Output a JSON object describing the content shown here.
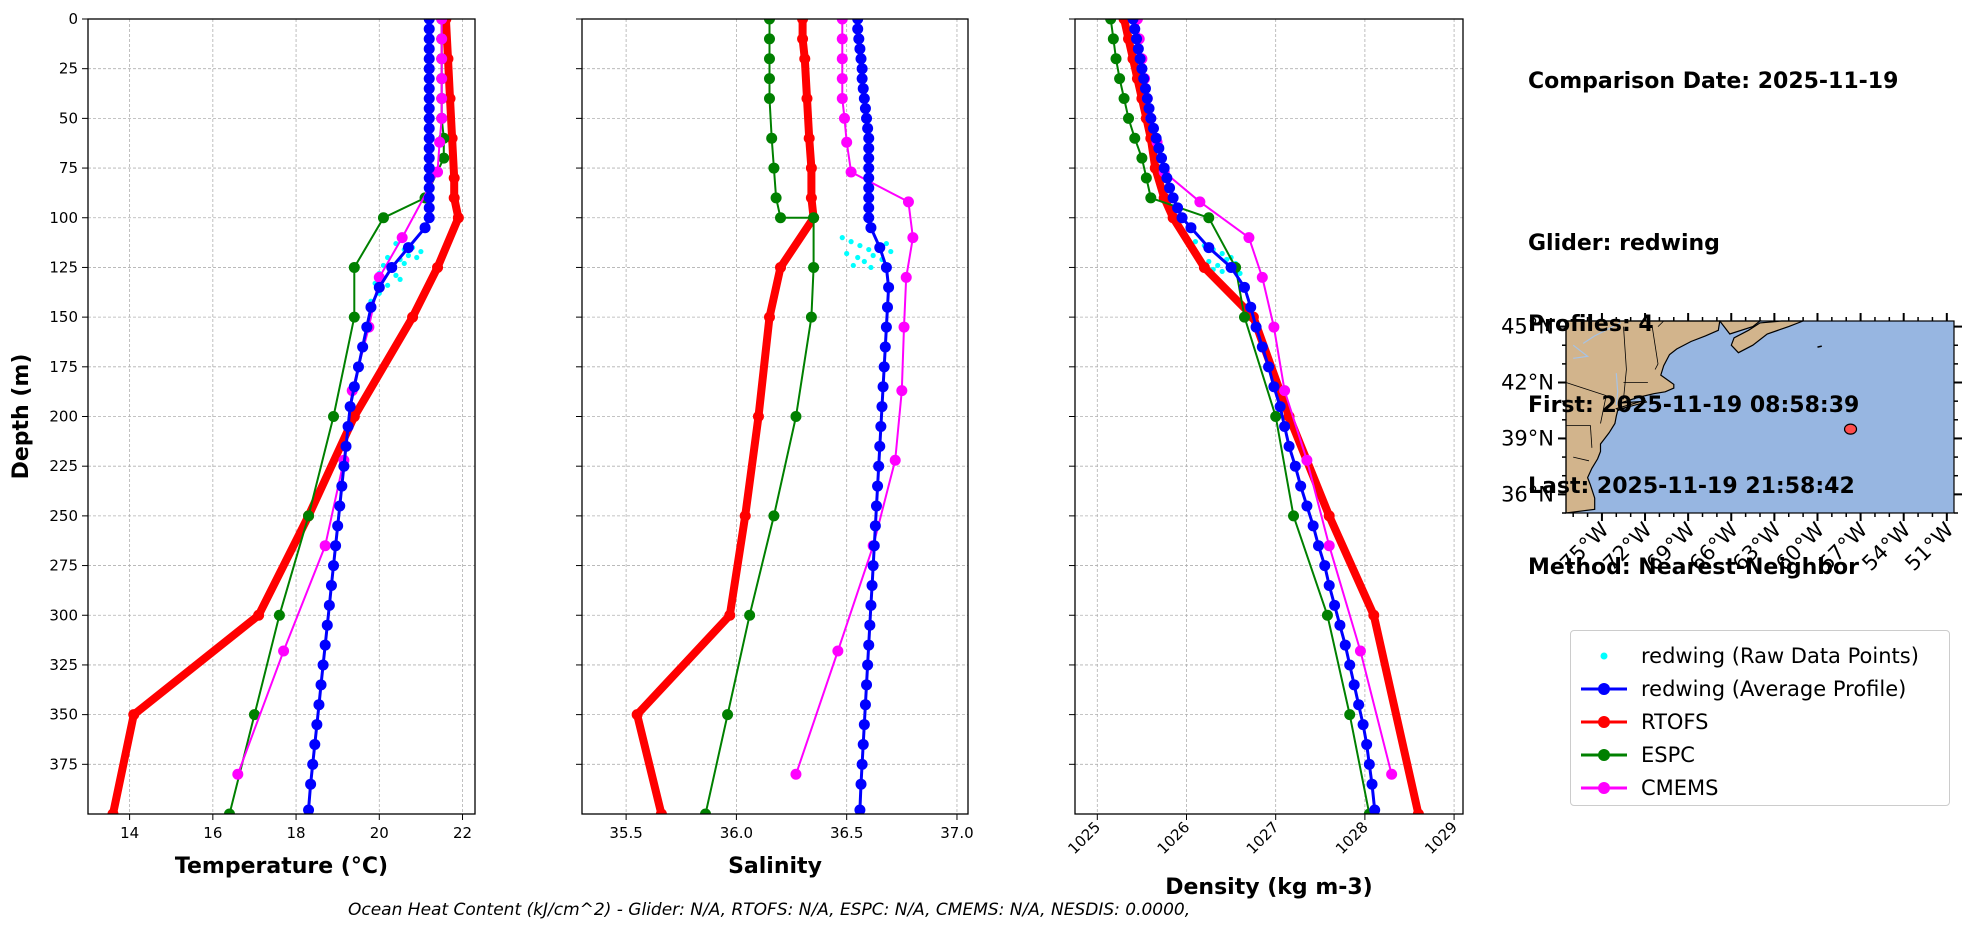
{
  "info": {
    "lines": [
      "Comparison Date: 2025-11-19",
      "",
      "Glider: redwing",
      "Profiles: 4",
      "First: 2025-11-19 08:58:39",
      "Last: 2025-11-19 21:58:42",
      "Method: Nearest-Neighbor"
    ]
  },
  "footer": {
    "text": "Ocean Heat Content (kJ/cm^2) - Glider: N/A,  RTOFS: N/A,  ESPC: N/A,  CMEMS: N/A,  NESDIS: 0.0000,"
  },
  "legend": {
    "items": [
      {
        "label": "redwing (Raw Data Points)",
        "color": "#00ffff",
        "style": "dot"
      },
      {
        "label": "redwing (Average Profile)",
        "color": "#0000ff",
        "style": "line-marker"
      },
      {
        "label": "RTOFS",
        "color": "#ff0000",
        "style": "line-marker"
      },
      {
        "label": "ESPC",
        "color": "#008000",
        "style": "line-marker"
      },
      {
        "label": "CMEMS",
        "color": "#ff00ff",
        "style": "line-marker"
      }
    ]
  },
  "map": {
    "lat_ticks": [
      "45°N",
      "42°N",
      "39°N",
      "36°N"
    ],
    "lon_ticks": [
      "75°W",
      "72°W",
      "69°W",
      "66°W",
      "63°W",
      "60°W",
      "57°W",
      "54°W",
      "51°W"
    ],
    "lat_values": [
      45,
      42,
      39,
      36
    ],
    "lon_values": [
      -75,
      -72,
      -69,
      -66,
      -63,
      -60,
      -57,
      -54,
      -51
    ],
    "extent": {
      "lon_min": -77.5,
      "lon_max": -50.5,
      "lat_min": 35,
      "lat_max": 45.3
    },
    "glider_position": {
      "lon": -57.7,
      "lat": 39.5
    },
    "ocean_color": "#97b6e1",
    "land_color": "#d2b48c"
  },
  "chart_data": [
    {
      "type": "line",
      "xlabel": "Temperature (°C)",
      "ylabel": "Depth (m)",
      "xlim": [
        13,
        22.3
      ],
      "ylim": [
        400,
        0
      ],
      "xticks": [
        14,
        16,
        18,
        20,
        22
      ],
      "yticks": [
        0,
        25,
        50,
        75,
        100,
        125,
        150,
        175,
        200,
        225,
        250,
        275,
        300,
        325,
        350,
        375
      ],
      "grid": true,
      "series": [
        {
          "name": "redwing (Raw Data Points)",
          "color": "#00ffff",
          "style": "dot",
          "x": [
            20.4,
            20.6,
            20.8,
            21.0,
            20.2,
            20.5,
            20.7,
            20.9,
            20.1,
            20.3,
            20.6,
            20.0,
            20.4,
            19.9,
            20.2,
            20.5,
            20.0,
            19.8
          ],
          "y": [
            113,
            116,
            115,
            117,
            120,
            121,
            119,
            120,
            124,
            125,
            123,
            128,
            129,
            133,
            134,
            131,
            138,
            142
          ]
        },
        {
          "name": "redwing (Average Profile)",
          "color": "#0000ff",
          "style": "line-marker",
          "width": 3,
          "x": [
            21.2,
            21.2,
            21.2,
            21.2,
            21.2,
            21.2,
            21.2,
            21.2,
            21.2,
            21.2,
            21.2,
            21.2,
            21.2,
            21.2,
            21.2,
            21.2,
            21.2,
            21.2,
            21.2,
            21.2,
            21.2,
            21.1,
            20.7,
            20.3,
            20.0,
            19.8,
            19.7,
            19.6,
            19.5,
            19.4,
            19.3,
            19.25,
            19.2,
            19.15,
            19.1,
            19.05,
            19.0,
            18.95,
            18.9,
            18.85,
            18.8,
            18.75,
            18.7,
            18.65,
            18.6,
            18.55,
            18.5,
            18.45,
            18.4,
            18.35,
            18.3
          ],
          "y": [
            0,
            5,
            10,
            15,
            20,
            25,
            30,
            35,
            40,
            45,
            50,
            55,
            60,
            65,
            70,
            75,
            80,
            85,
            90,
            95,
            100,
            105,
            115,
            125,
            135,
            145,
            155,
            165,
            175,
            185,
            195,
            205,
            215,
            225,
            235,
            245,
            255,
            265,
            275,
            285,
            295,
            305,
            315,
            325,
            335,
            345,
            355,
            365,
            375,
            385,
            398
          ]
        },
        {
          "name": "RTOFS",
          "color": "#ff0000",
          "style": "line-marker",
          "width": 8,
          "x": [
            21.6,
            21.65,
            21.7,
            21.75,
            21.8,
            21.8,
            21.9,
            21.4,
            20.8,
            19.4,
            18.3,
            17.1,
            14.1,
            13.6
          ],
          "y": [
            0,
            20,
            40,
            60,
            80,
            90,
            100,
            125,
            150,
            200,
            250,
            300,
            350,
            400
          ]
        },
        {
          "name": "ESPC",
          "color": "#008000",
          "style": "line-marker",
          "width": 2,
          "x": [
            21.5,
            21.5,
            21.5,
            21.5,
            21.5,
            21.5,
            21.55,
            21.55,
            21.1,
            20.1,
            19.4,
            19.4,
            18.9,
            18.3,
            17.6,
            17.0,
            16.4
          ],
          "y": [
            0,
            10,
            20,
            30,
            40,
            50,
            60,
            70,
            90,
            100,
            125,
            150,
            200,
            250,
            300,
            350,
            400
          ]
        },
        {
          "name": "CMEMS",
          "color": "#ff00ff",
          "style": "line-marker",
          "width": 2,
          "x": [
            21.5,
            21.5,
            21.5,
            21.5,
            21.5,
            21.5,
            21.45,
            21.4,
            20.55,
            20.0,
            19.75,
            19.35,
            19.15,
            18.7,
            17.7,
            16.6
          ],
          "y": [
            0,
            10,
            20,
            30,
            40,
            50,
            62,
            77,
            110,
            130,
            155,
            187,
            222,
            265,
            318,
            380
          ]
        }
      ]
    },
    {
      "type": "line",
      "xlabel": "Salinity",
      "ylabel": "",
      "xlim": [
        35.3,
        37.05
      ],
      "ylim": [
        400,
        0
      ],
      "xticks": [
        35.5,
        36.0,
        36.5,
        37.0
      ],
      "xticklabels": [
        "35.5",
        "36.0",
        "36.5",
        "37.0"
      ],
      "grid": true,
      "series": [
        {
          "name": "redwing (Raw Data Points)",
          "color": "#00ffff",
          "style": "dot",
          "x": [
            36.48,
            36.52,
            36.56,
            36.6,
            36.64,
            36.68,
            36.5,
            36.55,
            36.62,
            36.7,
            36.58,
            36.66,
            36.53,
            36.61
          ],
          "y": [
            110,
            112,
            114,
            116,
            115,
            113,
            118,
            120,
            119,
            117,
            122,
            121,
            124,
            125
          ]
        },
        {
          "name": "redwing (Average Profile)",
          "color": "#0000ff",
          "style": "line-marker",
          "width": 3,
          "x": [
            36.55,
            36.55,
            36.555,
            36.56,
            36.565,
            36.57,
            36.57,
            36.575,
            36.58,
            36.585,
            36.59,
            36.595,
            36.6,
            36.6,
            36.6,
            36.6,
            36.6,
            36.6,
            36.6,
            36.6,
            36.6,
            36.61,
            36.65,
            36.68,
            36.69,
            36.685,
            36.68,
            36.675,
            36.67,
            36.665,
            36.66,
            36.655,
            36.65,
            36.645,
            36.64,
            36.635,
            36.63,
            36.625,
            36.62,
            36.615,
            36.61,
            36.605,
            36.6,
            36.595,
            36.59,
            36.585,
            36.58,
            36.575,
            36.57,
            36.565,
            36.56
          ],
          "y": [
            0,
            5,
            10,
            15,
            20,
            25,
            30,
            35,
            40,
            45,
            50,
            55,
            60,
            65,
            70,
            75,
            80,
            85,
            90,
            95,
            100,
            105,
            115,
            125,
            135,
            145,
            155,
            165,
            175,
            185,
            195,
            205,
            215,
            225,
            235,
            245,
            255,
            265,
            275,
            285,
            295,
            305,
            315,
            325,
            335,
            345,
            355,
            365,
            375,
            385,
            398
          ]
        },
        {
          "name": "RTOFS",
          "color": "#ff0000",
          "style": "line-marker",
          "width": 8,
          "x": [
            36.3,
            36.3,
            36.31,
            36.32,
            36.33,
            36.34,
            36.34,
            36.35,
            36.2,
            36.15,
            36.1,
            36.04,
            35.97,
            35.55,
            35.66
          ],
          "y": [
            0,
            10,
            20,
            40,
            60,
            75,
            90,
            100,
            125,
            150,
            200,
            250,
            300,
            350,
            400
          ]
        },
        {
          "name": "ESPC",
          "color": "#008000",
          "style": "line-marker",
          "width": 2,
          "x": [
            36.15,
            36.15,
            36.15,
            36.15,
            36.15,
            36.16,
            36.17,
            36.18,
            36.2,
            36.35,
            36.35,
            36.34,
            36.27,
            36.17,
            36.06,
            35.96,
            35.86
          ],
          "y": [
            0,
            10,
            20,
            30,
            40,
            60,
            75,
            90,
            100,
            100,
            125,
            150,
            200,
            250,
            300,
            350,
            400
          ]
        },
        {
          "name": "CMEMS",
          "color": "#ff00ff",
          "style": "line-marker",
          "width": 2,
          "x": [
            36.48,
            36.48,
            36.48,
            36.48,
            36.48,
            36.49,
            36.5,
            36.52,
            36.78,
            36.8,
            36.77,
            36.76,
            36.75,
            36.72,
            36.62,
            36.46,
            36.27
          ],
          "y": [
            0,
            10,
            20,
            30,
            40,
            50,
            62,
            77,
            92,
            110,
            130,
            155,
            187,
            222,
            265,
            318,
            380
          ]
        }
      ]
    },
    {
      "type": "line",
      "xlabel": "Density (kg m-3)",
      "ylabel": "",
      "xlim": [
        1024.75,
        1029.1
      ],
      "ylim": [
        400,
        0
      ],
      "xticks": [
        1025,
        1026,
        1027,
        1028,
        1029
      ],
      "grid": true,
      "series": [
        {
          "name": "redwing (Raw Data Points)",
          "color": "#00ffff",
          "style": "dot",
          "x": [
            1026.1,
            1026.2,
            1026.3,
            1026.4,
            1026.5,
            1026.25,
            1026.35,
            1026.45,
            1026.55,
            1026.3,
            1026.4,
            1026.6
          ],
          "y": [
            112,
            114,
            116,
            118,
            120,
            122,
            124,
            121,
            123,
            126,
            127,
            128
          ]
        },
        {
          "name": "redwing (Average Profile)",
          "color": "#0000ff",
          "style": "line-marker",
          "width": 3,
          "x": [
            1025.4,
            1025.42,
            1025.44,
            1025.46,
            1025.48,
            1025.5,
            1025.52,
            1025.54,
            1025.56,
            1025.58,
            1025.6,
            1025.63,
            1025.66,
            1025.69,
            1025.72,
            1025.75,
            1025.78,
            1025.81,
            1025.85,
            1025.9,
            1025.95,
            1026.05,
            1026.25,
            1026.5,
            1026.65,
            1026.72,
            1026.78,
            1026.85,
            1026.92,
            1026.98,
            1027.05,
            1027.1,
            1027.15,
            1027.22,
            1027.28,
            1027.35,
            1027.42,
            1027.48,
            1027.55,
            1027.6,
            1027.66,
            1027.72,
            1027.78,
            1027.83,
            1027.88,
            1027.93,
            1027.98,
            1028.02,
            1028.05,
            1028.08,
            1028.11
          ],
          "y": [
            0,
            5,
            10,
            15,
            20,
            25,
            30,
            35,
            40,
            45,
            50,
            55,
            60,
            65,
            70,
            75,
            80,
            85,
            90,
            95,
            100,
            105,
            115,
            125,
            135,
            145,
            155,
            165,
            175,
            185,
            195,
            205,
            215,
            225,
            235,
            245,
            255,
            265,
            275,
            285,
            295,
            305,
            315,
            325,
            335,
            345,
            355,
            365,
            375,
            385,
            398
          ]
        },
        {
          "name": "RTOFS",
          "color": "#ff0000",
          "style": "line-marker",
          "width": 8,
          "x": [
            1025.3,
            1025.35,
            1025.4,
            1025.45,
            1025.5,
            1025.55,
            1025.6,
            1025.65,
            1025.75,
            1025.85,
            1026.2,
            1026.75,
            1027.15,
            1027.6,
            1028.1,
            1028.6
          ],
          "y": [
            0,
            10,
            20,
            30,
            40,
            50,
            60,
            75,
            90,
            100,
            125,
            150,
            200,
            250,
            300,
            400
          ]
        },
        {
          "name": "ESPC",
          "color": "#008000",
          "style": "line-marker",
          "width": 2,
          "x": [
            1025.15,
            1025.18,
            1025.21,
            1025.25,
            1025.3,
            1025.35,
            1025.42,
            1025.5,
            1025.55,
            1025.6,
            1026.25,
            1026.55,
            1026.65,
            1027.0,
            1027.2,
            1027.58,
            1027.83,
            1028.05
          ],
          "y": [
            0,
            10,
            20,
            30,
            40,
            50,
            60,
            70,
            80,
            90,
            100,
            125,
            150,
            200,
            250,
            300,
            350,
            400
          ]
        },
        {
          "name": "CMEMS",
          "color": "#ff00ff",
          "style": "line-marker",
          "width": 2,
          "x": [
            1025.45,
            1025.47,
            1025.5,
            1025.53,
            1025.56,
            1025.6,
            1025.67,
            1025.75,
            1026.15,
            1026.7,
            1026.85,
            1026.98,
            1027.1,
            1027.35,
            1027.6,
            1027.95,
            1028.3
          ],
          "y": [
            0,
            10,
            20,
            30,
            40,
            50,
            62,
            77,
            92,
            110,
            130,
            155,
            187,
            222,
            265,
            318,
            380
          ]
        }
      ]
    }
  ]
}
